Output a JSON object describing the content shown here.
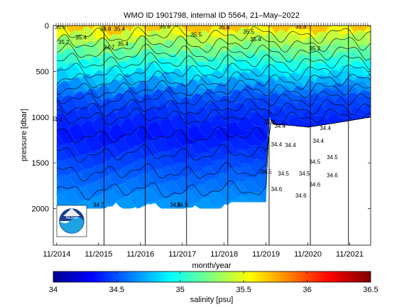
{
  "chart_data": {
    "type": "heatmap",
    "title": "WMO ID 1901798, internal ID 5564, 21–May–2022",
    "xlabel": "month/year",
    "ylabel": "pressure [dbar]",
    "x_ticks": [
      "11/2014",
      "11/2015",
      "11/2016",
      "11/2017",
      "11/2018",
      "11/2019",
      "11/2020",
      "11/2021"
    ],
    "y_ticks": [
      0,
      500,
      1000,
      1500,
      2000
    ],
    "ylim": [
      2400,
      0
    ],
    "xlim": [
      "2014-10",
      "2022-05"
    ],
    "depth_limit": [
      {
        "date": "2014-11",
        "pressure": 2000
      },
      {
        "date": "2018-12",
        "pressure": 2000
      },
      {
        "date": "2019-01",
        "pressure": 1930
      },
      {
        "date": "2019-11",
        "pressure": 1930
      },
      {
        "date": "2019-12",
        "pressure": 1000
      },
      {
        "date": "2020-01",
        "pressure": 1080
      },
      {
        "date": "2020-06",
        "pressure": 1090
      },
      {
        "date": "2020-11",
        "pressure": 1110
      },
      {
        "date": "2021-06",
        "pressure": 1070
      },
      {
        "date": "2022-05",
        "pressure": 1000
      }
    ],
    "colorbar": {
      "label": "salinity [psu]",
      "min": 34,
      "max": 36.5,
      "ticks": [
        34,
        34.5,
        35,
        35.5,
        36,
        36.5
      ],
      "colormap": "jet"
    },
    "profile_x_fractions": [
      0.16,
      0.29,
      0.42,
      0.55,
      0.68,
      0.81,
      0.93
    ],
    "contour_labels": [
      {
        "date": "2014-12",
        "pressure": 40,
        "value": "35.6"
      },
      {
        "date": "2015-01",
        "pressure": 200,
        "value": "35.2"
      },
      {
        "date": "2015-06",
        "pressure": 150,
        "value": "35.4"
      },
      {
        "date": "2016-01",
        "pressure": 60,
        "value": "34.8"
      },
      {
        "date": "2016-05",
        "pressure": 60,
        "value": "35.4"
      },
      {
        "date": "2016-02",
        "pressure": 260,
        "value": "34.7"
      },
      {
        "date": "2016-06",
        "pressure": 220,
        "value": "35.4"
      },
      {
        "date": "2017-06",
        "pressure": 30,
        "value": "35.6"
      },
      {
        "date": "2018-03",
        "pressure": 120,
        "value": "35.5"
      },
      {
        "date": "2018-11",
        "pressure": 40,
        "value": "35.4"
      },
      {
        "date": "2019-06",
        "pressure": 90,
        "value": "35.5"
      },
      {
        "date": "2019-08",
        "pressure": 170,
        "value": "35.4"
      },
      {
        "date": "2020-09",
        "pressure": 30,
        "value": "35.8"
      },
      {
        "date": "2021-01",
        "pressure": 270,
        "value": "35.2"
      },
      {
        "date": "2014-11",
        "pressure": 1050,
        "value": "34.4"
      },
      {
        "date": "2019-12",
        "pressure": 1080,
        "value": "34.3"
      },
      {
        "date": "2020-03",
        "pressure": 1120,
        "value": "34.4"
      },
      {
        "date": "2021-04",
        "pressure": 1140,
        "value": "34.4"
      },
      {
        "date": "2020-02",
        "pressure": 1320,
        "value": "34.4"
      },
      {
        "date": "2020-06",
        "pressure": 1330,
        "value": "34.4"
      },
      {
        "date": "2021-02",
        "pressure": 1280,
        "value": "34.4"
      },
      {
        "date": "2021-06",
        "pressure": 1460,
        "value": "34.5"
      },
      {
        "date": "2021-01",
        "pressure": 1510,
        "value": "34.5"
      },
      {
        "date": "2019-11",
        "pressure": 1620,
        "value": "34.5"
      },
      {
        "date": "2020-04",
        "pressure": 1640,
        "value": "34.5"
      },
      {
        "date": "2020-10",
        "pressure": 1640,
        "value": "34.5"
      },
      {
        "date": "2021-06",
        "pressure": 1660,
        "value": "34.6"
      },
      {
        "date": "2021-01",
        "pressure": 1760,
        "value": "34.6"
      },
      {
        "date": "2020-02",
        "pressure": 1810,
        "value": "34.6"
      },
      {
        "date": "2020-09",
        "pressure": 1880,
        "value": "34.6"
      },
      {
        "date": "2015-11",
        "pressure": 1980,
        "value": "34.7"
      },
      {
        "date": "2017-09",
        "pressure": 1980,
        "value": "34.6"
      },
      {
        "date": "2017-11",
        "pressure": 1980,
        "value": "34.5"
      }
    ]
  },
  "logo": {
    "name": "noaa-logo",
    "text": "NOAA"
  }
}
